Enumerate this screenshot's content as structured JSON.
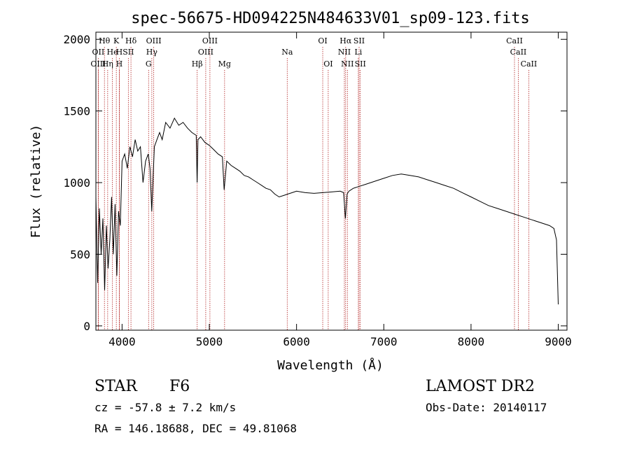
{
  "chart_data": {
    "type": "line",
    "title": "spec-56675-HD094225N484633V01_sp09-123.fits",
    "xlabel": "Wavelength (Å)",
    "ylabel": "Flux (relative)",
    "xlim": [
      3700,
      9100
    ],
    "ylim": [
      -30,
      2050
    ],
    "xticks": [
      4000,
      5000,
      6000,
      7000,
      8000,
      9000
    ],
    "yticks": [
      0,
      500,
      1000,
      1500,
      2000
    ],
    "grid": false,
    "line_color": "#000000",
    "marker_color": "#b22222",
    "series": [
      {
        "x": [
          3700,
          3720,
          3740,
          3760,
          3780,
          3800,
          3820,
          3840,
          3860,
          3880,
          3900,
          3920,
          3940,
          3960,
          3980,
          4000,
          4030,
          4060,
          4090,
          4120,
          4150,
          4180,
          4210,
          4240,
          4270,
          4300,
          4320,
          4340,
          4370,
          4400,
          4430,
          4460,
          4500,
          4550,
          4600,
          4650,
          4700,
          4750,
          4800,
          4850,
          4860,
          4870,
          4900,
          4950,
          5000,
          5050,
          5100,
          5150,
          5170,
          5200,
          5250,
          5300,
          5350,
          5400,
          5450,
          5500,
          5550,
          5600,
          5650,
          5700,
          5750,
          5800,
          5850,
          5900,
          5950,
          6000,
          6100,
          6200,
          6300,
          6400,
          6500,
          6540,
          6560,
          6580,
          6600,
          6650,
          6700,
          6800,
          6900,
          7000,
          7100,
          7200,
          7300,
          7400,
          7500,
          7600,
          7700,
          7800,
          7900,
          8000,
          8100,
          8200,
          8300,
          8400,
          8500,
          8600,
          8700,
          8800,
          8900,
          8950,
          8980,
          9000
        ],
        "y": [
          900,
          300,
          820,
          500,
          750,
          250,
          700,
          400,
          600,
          900,
          500,
          850,
          350,
          800,
          700,
          1150,
          1200,
          1100,
          1250,
          1180,
          1300,
          1220,
          1250,
          1000,
          1150,
          1200,
          1100,
          800,
          1250,
          1300,
          1350,
          1300,
          1420,
          1380,
          1450,
          1400,
          1420,
          1380,
          1350,
          1330,
          1000,
          1300,
          1320,
          1280,
          1260,
          1230,
          1200,
          1180,
          950,
          1150,
          1120,
          1100,
          1080,
          1050,
          1040,
          1020,
          1000,
          980,
          960,
          950,
          920,
          900,
          910,
          920,
          930,
          940,
          930,
          925,
          930,
          935,
          940,
          930,
          750,
          920,
          940,
          960,
          970,
          990,
          1010,
          1030,
          1050,
          1060,
          1050,
          1040,
          1020,
          1000,
          980,
          960,
          930,
          900,
          870,
          840,
          820,
          800,
          780,
          760,
          740,
          720,
          700,
          680,
          600,
          150
        ],
        "marker_style": "raw trace, no markers"
      }
    ],
    "line_ids": [
      {
        "label": "Hθ",
        "wl": 3798,
        "row": 1
      },
      {
        "label": "K",
        "wl": 3934,
        "row": 1
      },
      {
        "label": "Hδ",
        "wl": 4102,
        "row": 1
      },
      {
        "label": "OIII",
        "wl": 4363,
        "row": 1
      },
      {
        "label": "OIII",
        "wl": 5007,
        "row": 1
      },
      {
        "label": "OI",
        "wl": 6300,
        "row": 1
      },
      {
        "label": "Hα",
        "wl": 6563,
        "row": 1
      },
      {
        "label": "SII",
        "wl": 6717,
        "row": 1
      },
      {
        "label": "CaII",
        "wl": 8498,
        "row": 1
      },
      {
        "label": "OII",
        "wl": 3727,
        "row": 2
      },
      {
        "label": "He",
        "wl": 3889,
        "row": 2
      },
      {
        "label": "H",
        "wl": 3968,
        "row": 2
      },
      {
        "label": "SII",
        "wl": 4072,
        "row": 2
      },
      {
        "label": "Hγ",
        "wl": 4341,
        "row": 2
      },
      {
        "label": "OIII",
        "wl": 4959,
        "row": 2
      },
      {
        "label": "Na",
        "wl": 5893,
        "row": 2
      },
      {
        "label": "NII",
        "wl": 6548,
        "row": 2
      },
      {
        "label": "Li",
        "wl": 6708,
        "row": 2
      },
      {
        "label": "CaII",
        "wl": 8542,
        "row": 2
      },
      {
        "label": "OIII",
        "wl": 3727,
        "row": 3
      },
      {
        "label": "Hη",
        "wl": 3835,
        "row": 3
      },
      {
        "label": "H",
        "wl": 3968,
        "row": 3
      },
      {
        "label": "G",
        "wl": 4304,
        "row": 3
      },
      {
        "label": "Hβ",
        "wl": 4861,
        "row": 3
      },
      {
        "label": "Mg",
        "wl": 5175,
        "row": 3
      },
      {
        "label": "OI",
        "wl": 6363,
        "row": 3
      },
      {
        "label": "NII",
        "wl": 6583,
        "row": 3
      },
      {
        "label": "SII",
        "wl": 6731,
        "row": 3
      },
      {
        "label": "CaII",
        "wl": 8662,
        "row": 3
      }
    ]
  },
  "info": {
    "object_class": "STAR",
    "subclass": "F6",
    "survey": "LAMOST DR2",
    "velocity": "cz = -57.8 ± 7.2 km/s",
    "obs_date": "Obs-Date: 20140117",
    "coords": "RA = 146.18688, DEC =  49.81068"
  }
}
